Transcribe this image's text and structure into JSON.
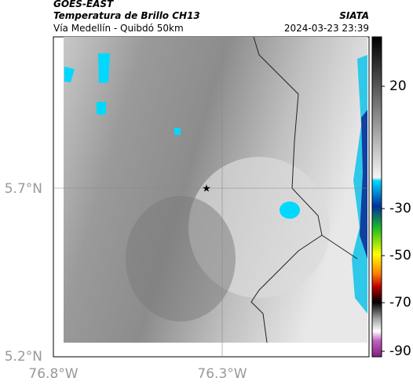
{
  "header": {
    "source": "GOES-EAST",
    "product": "Temperatura de Brillo CH13",
    "place": "Vía Medellín - Quibdó 50km",
    "org": "SIATA",
    "datetime": "2024-03-23 23:39"
  },
  "map": {
    "lat_labels": [
      "5.7°N",
      "5.2°N"
    ],
    "lon_labels": [
      "76.8°W",
      "76.3°W"
    ]
  },
  "colorbar": {
    "tick_labels": [
      "20",
      "-30",
      "-50",
      "-70",
      "-90"
    ]
  }
}
